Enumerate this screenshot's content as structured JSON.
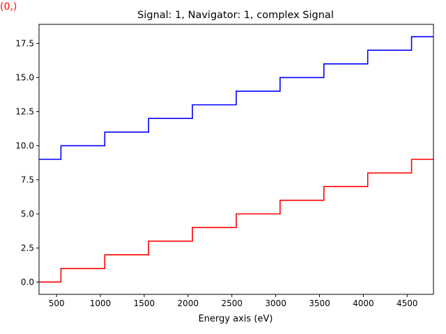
{
  "index_label": "(0,)",
  "chart_data": {
    "type": "line",
    "step": "post",
    "title": "Signal: 1, Navigator: 1, complex Signal",
    "xlabel": "Energy axis (eV)",
    "ylabel": "",
    "xlim": [
      300,
      4800
    ],
    "ylim": [
      -0.9,
      18.9
    ],
    "xticks": [
      500,
      1000,
      1500,
      2000,
      2500,
      3000,
      3500,
      4000,
      4500
    ],
    "xtick_labels": [
      "500",
      "1000",
      "1500",
      "2000",
      "2500",
      "3000",
      "3500",
      "4000",
      "4500"
    ],
    "yticks": [
      0,
      2.5,
      5,
      7.5,
      10,
      12.5,
      15,
      17.5
    ],
    "ytick_labels": [
      "0.0",
      "2.5",
      "5.0",
      "7.5",
      "10.0",
      "12.5",
      "15.0",
      "17.5"
    ],
    "x": [
      300,
      550,
      1050,
      1550,
      2050,
      2550,
      3050,
      3550,
      4050,
      4550,
      4800
    ],
    "series": [
      {
        "color": "#0000ff",
        "values": [
          9,
          10,
          11,
          12,
          13,
          14,
          15,
          16,
          17,
          18,
          18
        ]
      },
      {
        "color": "#ff0000",
        "values": [
          0,
          1,
          2,
          3,
          4,
          5,
          6,
          7,
          8,
          9,
          9
        ]
      }
    ],
    "grid": false,
    "legend": "none"
  }
}
